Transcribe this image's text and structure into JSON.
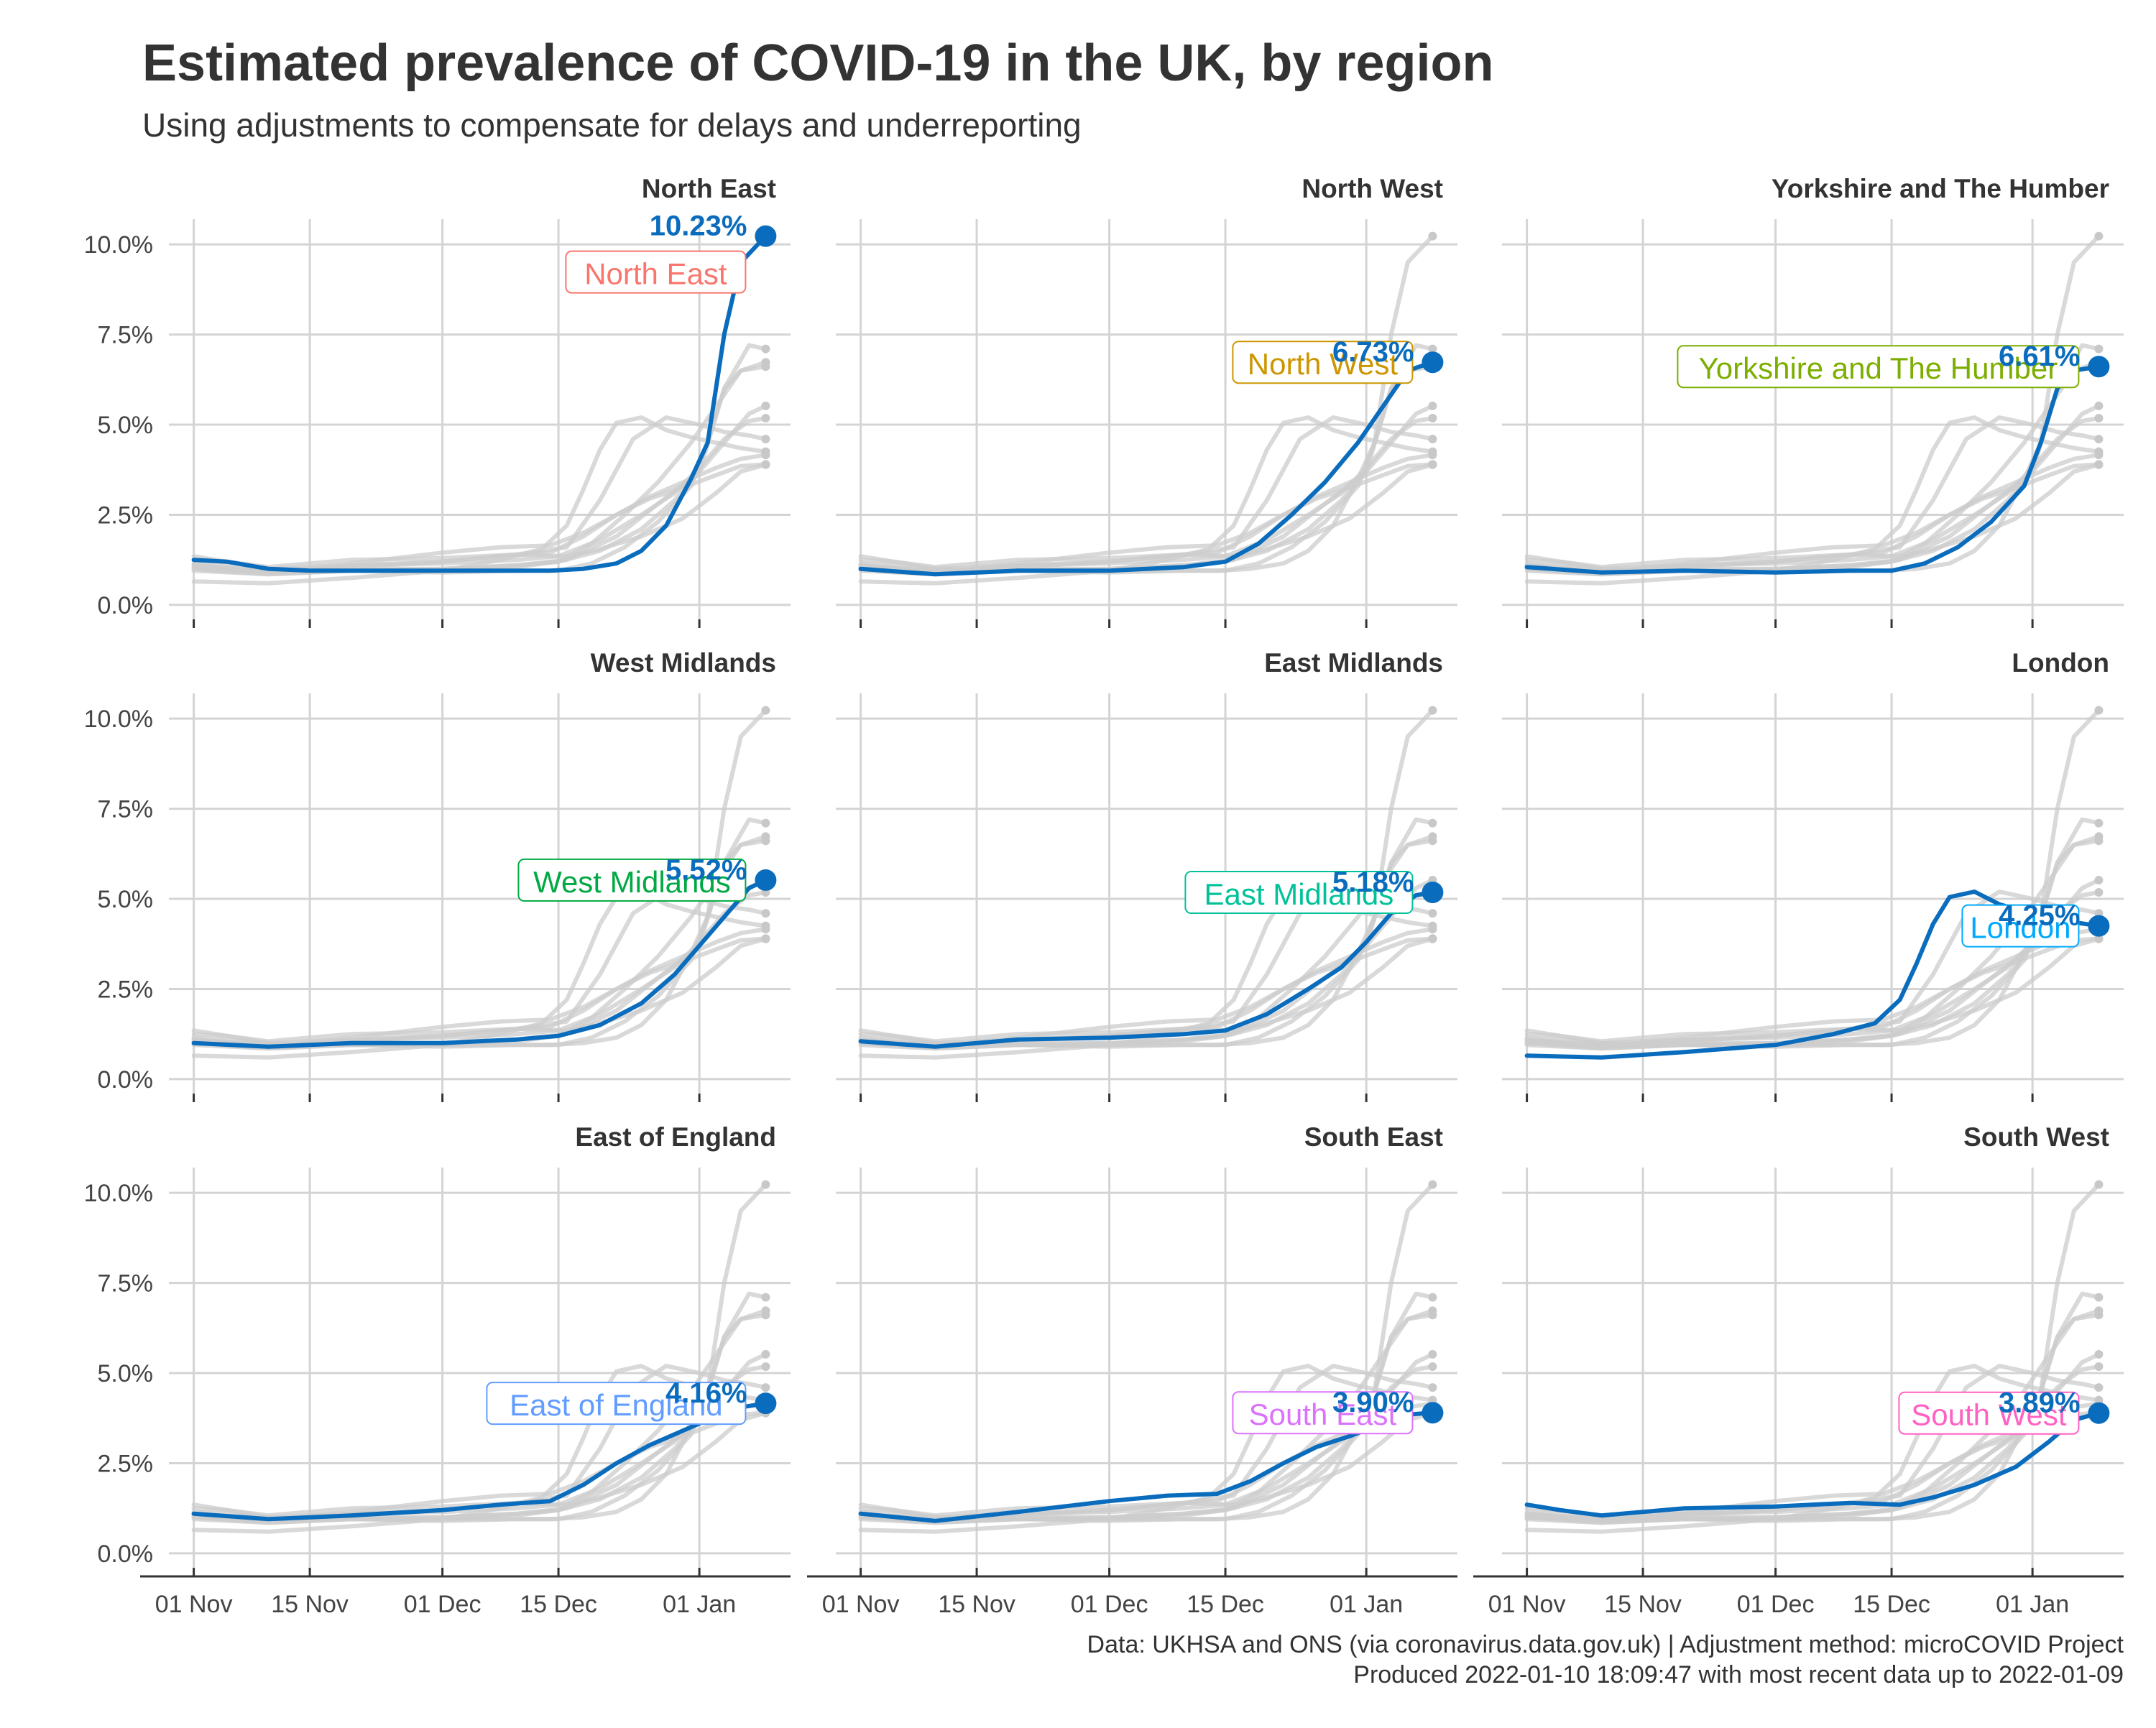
{
  "chart_data": {
    "type": "line",
    "title": "Estimated prevalence of COVID-19 in the UK, by region",
    "subtitle": "Using adjustments to compensate for delays and underreporting",
    "caption_line1": "Data: UKHSA and ONS (via coronavirus.data.gov.uk) | Adjustment method: microCOVID Project",
    "caption_line2": "Produced 2022-01-10 18:09:47 with most recent data up to 2022-01-09",
    "x_tick_labels": [
      "01 Nov",
      "15 Nov",
      "01 Dec",
      "15 Dec",
      "01 Jan"
    ],
    "x_tick_dates": [
      "2021-11-01",
      "2021-11-15",
      "2021-12-01",
      "2021-12-15",
      "2022-01-01"
    ],
    "xlim": [
      "2021-10-29",
      "2022-01-12"
    ],
    "y_tick_labels": [
      "0.0%",
      "2.5%",
      "5.0%",
      "7.5%",
      "10.0%"
    ],
    "y_ticks": [
      0,
      2.5,
      5,
      7.5,
      10
    ],
    "ylim": [
      -0.4,
      10.7
    ],
    "highlight_color": "#0a6cbd",
    "background_line_color": "#cccccc",
    "series": [
      {
        "name": "North East",
        "label_color": "#f8766d",
        "last_label": "10.23%",
        "x": [
          "2021-11-01",
          "2021-11-05",
          "2021-11-10",
          "2021-11-15",
          "2021-11-22",
          "2021-12-01",
          "2021-12-08",
          "2021-12-14",
          "2021-12-18",
          "2021-12-22",
          "2021-12-25",
          "2021-12-28",
          "2021-12-31",
          "2022-01-02",
          "2022-01-04",
          "2022-01-06",
          "2022-01-09"
        ],
        "y": [
          1.25,
          1.2,
          1.0,
          0.95,
          0.95,
          0.95,
          0.95,
          0.95,
          1.0,
          1.15,
          1.5,
          2.2,
          3.5,
          4.5,
          7.5,
          9.5,
          10.23
        ]
      },
      {
        "name": "North West",
        "label_color": "#cd9600",
        "last_label": "6.73%",
        "x": [
          "2021-11-01",
          "2021-11-10",
          "2021-11-20",
          "2021-12-01",
          "2021-12-10",
          "2021-12-15",
          "2021-12-19",
          "2021-12-23",
          "2021-12-27",
          "2021-12-31",
          "2022-01-03",
          "2022-01-06",
          "2022-01-09"
        ],
        "y": [
          1.0,
          0.85,
          0.95,
          0.95,
          1.05,
          1.2,
          1.7,
          2.5,
          3.4,
          4.5,
          5.5,
          6.5,
          6.73
        ]
      },
      {
        "name": "Yorkshire and The Humber",
        "label_color": "#7cae00",
        "last_label": "6.61%",
        "x": [
          "2021-11-01",
          "2021-11-10",
          "2021-11-20",
          "2021-12-01",
          "2021-12-10",
          "2021-12-15",
          "2021-12-19",
          "2021-12-23",
          "2021-12-27",
          "2021-12-31",
          "2022-01-02",
          "2022-01-04",
          "2022-01-06",
          "2022-01-09"
        ],
        "y": [
          1.05,
          0.9,
          0.95,
          0.9,
          0.95,
          0.95,
          1.15,
          1.6,
          2.3,
          3.3,
          4.5,
          6.0,
          6.5,
          6.61
        ]
      },
      {
        "name": "West Midlands",
        "label_color": "#00a943",
        "last_label": "5.52%",
        "x": [
          "2021-11-01",
          "2021-11-10",
          "2021-11-20",
          "2021-12-01",
          "2021-12-10",
          "2021-12-15",
          "2021-12-20",
          "2021-12-25",
          "2021-12-29",
          "2022-01-01",
          "2022-01-04",
          "2022-01-07",
          "2022-01-09"
        ],
        "y": [
          1.0,
          0.9,
          1.0,
          1.0,
          1.1,
          1.2,
          1.5,
          2.1,
          2.9,
          3.7,
          4.5,
          5.3,
          5.52
        ]
      },
      {
        "name": "East Midlands",
        "label_color": "#00c19a",
        "last_label": "5.18%",
        "x": [
          "2021-11-01",
          "2021-11-10",
          "2021-11-20",
          "2021-12-01",
          "2021-12-10",
          "2021-12-15",
          "2021-12-20",
          "2021-12-25",
          "2021-12-29",
          "2022-01-01",
          "2022-01-04",
          "2022-01-07",
          "2022-01-09"
        ],
        "y": [
          1.05,
          0.9,
          1.1,
          1.15,
          1.25,
          1.35,
          1.8,
          2.5,
          3.1,
          3.8,
          4.6,
          5.1,
          5.18
        ]
      },
      {
        "name": "London",
        "label_color": "#00a9ff",
        "last_label": "4.25%",
        "x": [
          "2021-11-01",
          "2021-11-10",
          "2021-11-20",
          "2021-12-01",
          "2021-12-08",
          "2021-12-13",
          "2021-12-16",
          "2021-12-18",
          "2021-12-20",
          "2021-12-22",
          "2021-12-25",
          "2021-12-28",
          "2021-12-31",
          "2022-01-03",
          "2022-01-06",
          "2022-01-09"
        ],
        "y": [
          0.65,
          0.6,
          0.75,
          0.95,
          1.25,
          1.55,
          2.2,
          3.2,
          4.3,
          5.05,
          5.2,
          4.85,
          4.65,
          4.5,
          4.35,
          4.25
        ]
      },
      {
        "name": "East of England",
        "label_color": "#619cff",
        "last_label": "4.16%",
        "x": [
          "2021-11-01",
          "2021-11-10",
          "2021-11-20",
          "2021-12-01",
          "2021-12-08",
          "2021-12-14",
          "2021-12-18",
          "2021-12-22",
          "2021-12-26",
          "2021-12-30",
          "2022-01-03",
          "2022-01-06",
          "2022-01-09"
        ],
        "y": [
          1.1,
          0.95,
          1.05,
          1.2,
          1.35,
          1.45,
          1.9,
          2.5,
          3.0,
          3.4,
          3.8,
          4.05,
          4.16
        ]
      },
      {
        "name": "South East",
        "label_color": "#db72fb",
        "last_label": "3.90%",
        "x": [
          "2021-11-01",
          "2021-11-10",
          "2021-11-20",
          "2021-12-01",
          "2021-12-08",
          "2021-12-14",
          "2021-12-18",
          "2021-12-22",
          "2021-12-26",
          "2021-12-30",
          "2022-01-03",
          "2022-01-06",
          "2022-01-09"
        ],
        "y": [
          1.1,
          0.9,
          1.15,
          1.45,
          1.6,
          1.65,
          2.0,
          2.5,
          2.95,
          3.25,
          3.6,
          3.85,
          3.9
        ]
      },
      {
        "name": "South West",
        "label_color": "#ff61c3",
        "last_label": "3.89%",
        "x": [
          "2021-11-01",
          "2021-11-05",
          "2021-11-10",
          "2021-11-20",
          "2021-12-01",
          "2021-12-10",
          "2021-12-16",
          "2021-12-20",
          "2021-12-25",
          "2021-12-30",
          "2022-01-03",
          "2022-01-06",
          "2022-01-09"
        ],
        "y": [
          1.35,
          1.2,
          1.05,
          1.25,
          1.3,
          1.4,
          1.35,
          1.55,
          1.9,
          2.4,
          3.1,
          3.7,
          3.89
        ]
      }
    ],
    "extra_background_series": [
      {
        "x": [
          "2021-11-01",
          "2021-11-10",
          "2021-11-20",
          "2021-12-01",
          "2021-12-10",
          "2021-12-16",
          "2021-12-20",
          "2021-12-24",
          "2021-12-28",
          "2022-01-01",
          "2022-01-04",
          "2022-01-07",
          "2022-01-09"
        ],
        "y": [
          1.15,
          1.0,
          1.1,
          1.2,
          1.4,
          1.6,
          2.9,
          4.6,
          5.2,
          5.0,
          4.8,
          4.7,
          4.6
        ]
      },
      {
        "x": [
          "2021-11-01",
          "2021-11-10",
          "2021-11-20",
          "2021-12-01",
          "2021-12-10",
          "2021-12-16",
          "2021-12-22",
          "2021-12-27",
          "2022-01-01",
          "2022-01-04",
          "2022-01-07",
          "2022-01-09"
        ],
        "y": [
          0.95,
          0.85,
          0.95,
          1.0,
          1.1,
          1.25,
          1.9,
          2.8,
          3.7,
          6.0,
          7.2,
          7.1
        ]
      }
    ]
  }
}
